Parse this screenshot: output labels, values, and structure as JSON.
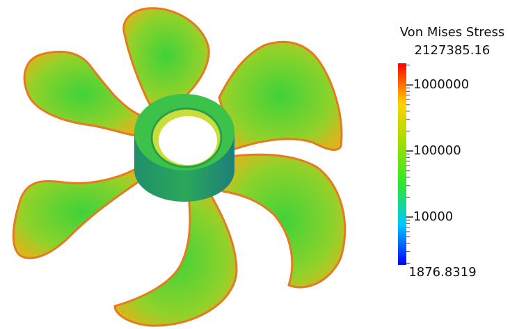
{
  "colorbar": {
    "title": "Von Mises Stress",
    "max": 2127385.16,
    "min": 1876.8319,
    "scale": "log",
    "ticks": [
      10000,
      100000,
      1000000
    ],
    "minor_ticks": [
      2000,
      3000,
      4000,
      5000,
      6000,
      7000,
      8000,
      9000,
      20000,
      30000,
      40000,
      50000,
      60000,
      70000,
      80000,
      90000,
      200000,
      300000,
      400000,
      500000,
      600000,
      700000,
      800000,
      900000,
      2000000
    ],
    "colormap": [
      "#0000ff",
      "#00c8ff",
      "#2ee62e",
      "#9be000",
      "#ffd200",
      "#ff0000"
    ]
  }
}
